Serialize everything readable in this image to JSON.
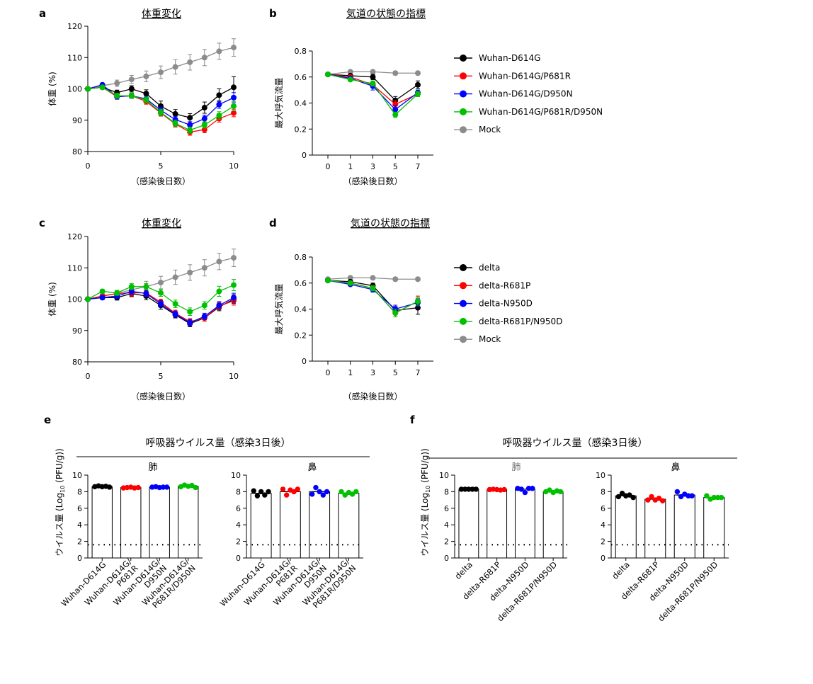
{
  "colors": {
    "black": "#000000",
    "red": "#ff0000",
    "blue": "#0000ff",
    "green": "#00c000",
    "gray": "#8c8c8c"
  },
  "chart_data": [
    {
      "panel": "a",
      "type": "line",
      "title": "体重変化",
      "xlabel": "（感染後日数）",
      "ylabel": "体重 (%)",
      "xlim": [
        0,
        10
      ],
      "ylim": [
        80,
        120
      ],
      "xticks": [
        0,
        5,
        10
      ],
      "yticks": [
        80,
        90,
        100,
        110,
        120
      ],
      "x": [
        0,
        1,
        2,
        3,
        4,
        5,
        6,
        7,
        8,
        9,
        10
      ],
      "series": [
        {
          "color": "black",
          "values": [
            100,
            100.5,
            98.8,
            100,
            98.5,
            94.5,
            92,
            90.8,
            94,
            98,
            100.5
          ],
          "err": [
            0,
            0.6,
            0.8,
            1,
            1.2,
            1.6,
            1.4,
            1.3,
            1.8,
            2,
            3.4
          ]
        },
        {
          "color": "red",
          "values": [
            100,
            100.5,
            97.5,
            97.8,
            96,
            92.3,
            88.8,
            86.2,
            87,
            90.5,
            92.3
          ],
          "err": [
            0,
            0.5,
            0.8,
            0.8,
            0.9,
            1,
            1,
            1,
            1,
            1.1,
            1.2
          ]
        },
        {
          "color": "blue",
          "values": [
            100,
            101.3,
            97.5,
            97.8,
            96.8,
            93.2,
            90.2,
            88.5,
            90.5,
            95,
            97.2
          ],
          "err": [
            0,
            0.5,
            0.8,
            0.8,
            0.9,
            1,
            1,
            1,
            1.1,
            1.2,
            1.6
          ]
        },
        {
          "color": "green",
          "values": [
            100,
            100.5,
            97.8,
            97.8,
            96.5,
            92.5,
            89,
            86.8,
            88.5,
            91.5,
            94.5
          ],
          "err": [
            0,
            0.5,
            0.8,
            0.8,
            0.9,
            1,
            1,
            1,
            1,
            1.2,
            1.5
          ]
        },
        {
          "color": "gray",
          "values": [
            100,
            101,
            101.8,
            103,
            104,
            105.3,
            107,
            108.5,
            110,
            112,
            113.2
          ],
          "err": [
            0,
            0.7,
            1,
            1.3,
            1.7,
            2,
            2.3,
            2.5,
            2.6,
            2.6,
            2.8
          ]
        }
      ]
    },
    {
      "panel": "b",
      "type": "line",
      "title": "気道の状態の指標",
      "xlabel": "（感染後日数）",
      "ylabel": "最大呼気流量",
      "categories": [
        "0",
        "1",
        "3",
        "5",
        "7"
      ],
      "ylim": [
        0,
        0.8
      ],
      "yticks": [
        "0",
        "0.2",
        "0.4",
        "0.6",
        "0.8"
      ],
      "series": [
        {
          "name": "Wuhan-D614G",
          "color": "black",
          "values": [
            0.62,
            0.61,
            0.6,
            0.42,
            0.54
          ],
          "err": [
            0.01,
            0.01,
            0.02,
            0.03,
            0.03
          ]
        },
        {
          "name": "Wuhan-D614G/P681R",
          "color": "red",
          "values": [
            0.62,
            0.6,
            0.54,
            0.39,
            0.47
          ],
          "err": [
            0.01,
            0.01,
            0.02,
            0.03,
            0.02
          ]
        },
        {
          "name": "Wuhan-D614G/D950N",
          "color": "blue",
          "values": [
            0.62,
            0.59,
            0.53,
            0.35,
            0.48
          ],
          "err": [
            0.01,
            0.01,
            0.03,
            0.03,
            0.02
          ]
        },
        {
          "name": "Wuhan-D614G/P681R/D950N",
          "color": "green",
          "values": [
            0.62,
            0.58,
            0.55,
            0.31,
            0.47
          ],
          "err": [
            0.01,
            0.01,
            0.02,
            0.02,
            0.02
          ]
        },
        {
          "name": "Mock",
          "color": "gray",
          "values": [
            0.62,
            0.64,
            0.64,
            0.63,
            0.63
          ],
          "err": [
            0.01,
            0.01,
            0.01,
            0.015,
            0.01
          ]
        }
      ]
    },
    {
      "panel": "c",
      "type": "line",
      "title": "体重変化",
      "xlabel": "（感染後日数）",
      "ylabel": "体重 (%)",
      "xlim": [
        0,
        10
      ],
      "ylim": [
        80,
        120
      ],
      "xticks": [
        0,
        5,
        10
      ],
      "yticks": [
        80,
        90,
        100,
        110,
        120
      ],
      "x": [
        0,
        1,
        2,
        3,
        4,
        5,
        6,
        7,
        8,
        9,
        10
      ],
      "series": [
        {
          "color": "black",
          "values": [
            100,
            100.5,
            100.5,
            101.8,
            101,
            98,
            95,
            92.2,
            94,
            97.5,
            100
          ],
          "err": [
            0,
            0.6,
            0.8,
            1,
            1.2,
            1.2,
            1,
            1,
            1,
            1.2,
            1.4
          ]
        },
        {
          "color": "red",
          "values": [
            100,
            101,
            101.8,
            102,
            102,
            99,
            95.5,
            92.8,
            94,
            97.8,
            99.5
          ],
          "err": [
            0,
            0.6,
            0.8,
            1,
            1,
            1,
            1,
            1,
            1,
            1.2,
            1.4
          ]
        },
        {
          "color": "blue",
          "values": [
            100,
            100.5,
            101,
            102.5,
            101.8,
            98.5,
            95.2,
            92.5,
            94.5,
            98,
            100.5
          ],
          "err": [
            0,
            0.6,
            0.8,
            1,
            1,
            1,
            1,
            1,
            1,
            1.2,
            1.4
          ]
        },
        {
          "color": "green",
          "values": [
            100,
            102.5,
            102,
            104,
            104,
            102,
            98.5,
            96,
            98,
            102.5,
            104.5
          ],
          "err": [
            0,
            0.6,
            0.8,
            1,
            1,
            1.1,
            1.2,
            1.2,
            1.2,
            1.6,
            1.8
          ]
        },
        {
          "color": "gray",
          "values": [
            100,
            101,
            101.8,
            103,
            104,
            105.3,
            107,
            108.5,
            110,
            112,
            113.2
          ],
          "err": [
            0,
            0.7,
            1,
            1.3,
            1.7,
            2,
            2.3,
            2.5,
            2.6,
            2.6,
            2.8
          ]
        }
      ]
    },
    {
      "panel": "d",
      "type": "line",
      "title": "気道の状態の指標",
      "xlabel": "（感染後日数）",
      "ylabel": "最大呼気流量",
      "categories": [
        "0",
        "1",
        "3",
        "5",
        "7"
      ],
      "ylim": [
        0,
        0.8
      ],
      "yticks": [
        "0",
        "0.2",
        "0.4",
        "0.6",
        "0.8"
      ],
      "series": [
        {
          "name": "delta",
          "color": "black",
          "values": [
            0.62,
            0.61,
            0.58,
            0.39,
            0.41
          ],
          "err": [
            0.01,
            0.01,
            0.02,
            0.03,
            0.05
          ]
        },
        {
          "name": "delta-R681P",
          "color": "red",
          "values": [
            0.62,
            0.6,
            0.56,
            0.37,
            0.46
          ],
          "err": [
            0.01,
            0.01,
            0.02,
            0.03,
            0.04
          ]
        },
        {
          "name": "delta-N950D",
          "color": "blue",
          "values": [
            0.62,
            0.59,
            0.55,
            0.4,
            0.45
          ],
          "err": [
            0.01,
            0.01,
            0.02,
            0.03,
            0.03
          ]
        },
        {
          "name": "delta-R681P/N950D",
          "color": "green",
          "values": [
            0.62,
            0.6,
            0.56,
            0.37,
            0.46
          ],
          "err": [
            0.01,
            0.01,
            0.02,
            0.03,
            0.03
          ]
        },
        {
          "name": "Mock",
          "color": "gray",
          "values": [
            0.63,
            0.64,
            0.64,
            0.63,
            0.63
          ],
          "err": [
            0.01,
            0.01,
            0.01,
            0.015,
            0.01
          ]
        }
      ]
    },
    {
      "panel": "e",
      "type": "bar",
      "title": "呼吸器ウイルス量（感染3日後）",
      "ylabel": "ウイルス量 (Log10 (PFU/g))",
      "ylim": [
        0,
        10
      ],
      "yticks": [
        "0",
        "2",
        "4",
        "6",
        "8",
        "10"
      ],
      "detection_limit": 1.6,
      "groups": [
        {
          "subtitle": "肺",
          "categories": [
            "Wuhan-D614G",
            "Wuhan-D614G/\nP681R",
            "Wuhan-D614G/\nD950N",
            "Wuhan-D614G/\nP681R/D950N"
          ],
          "values": [
            8.6,
            8.5,
            8.55,
            8.65
          ],
          "points": [
            [
              8.6,
              8.7,
              8.6,
              8.65,
              8.55
            ],
            [
              8.45,
              8.5,
              8.55,
              8.45,
              8.5
            ],
            [
              8.55,
              8.6,
              8.5,
              8.55,
              8.55
            ],
            [
              8.6,
              8.8,
              8.65,
              8.75,
              8.5
            ]
          ]
        },
        {
          "subtitle": "鼻",
          "categories": [
            "Wuhan-D614G",
            "Wuhan-D614G/\nP681R",
            "Wuhan-D614G/\nD950N",
            "Wuhan-D614G/\nP681R/D950N"
          ],
          "values": [
            7.8,
            8.0,
            8.0,
            7.8
          ],
          "points": [
            [
              8.1,
              7.5,
              8.0,
              7.6,
              8.0
            ],
            [
              8.3,
              7.6,
              8.2,
              8.0,
              8.3
            ],
            [
              7.7,
              8.5,
              8.0,
              7.6,
              8.0
            ],
            [
              8.0,
              7.6,
              7.9,
              7.7,
              8.0
            ]
          ]
        }
      ]
    },
    {
      "panel": "f",
      "type": "bar",
      "title": "呼吸器ウイルス量（感染3日後）",
      "ylabel": "ウイルス量 (Log10 (PFU/g))",
      "ylim": [
        0,
        10
      ],
      "yticks": [
        "0",
        "2",
        "4",
        "6",
        "8",
        "10"
      ],
      "detection_limit": 1.6,
      "groups": [
        {
          "subtitle": "肺",
          "categories": [
            "delta",
            "delta-R681P",
            "delta-N950D",
            "delta-R681P/N950D"
          ],
          "values": [
            8.3,
            8.25,
            8.3,
            8.0
          ],
          "points": [
            [
              8.3,
              8.3,
              8.3,
              8.3,
              8.3
            ],
            [
              8.25,
              8.3,
              8.25,
              8.2,
              8.25
            ],
            [
              8.4,
              8.3,
              7.9,
              8.4,
              8.4
            ],
            [
              8.0,
              8.2,
              7.9,
              8.1,
              8.0
            ]
          ]
        },
        {
          "subtitle": "鼻",
          "categories": [
            "delta",
            "delta-R681P",
            "delta-N950D",
            "delta-R681P/N950D"
          ],
          "values": [
            7.5,
            7.1,
            7.6,
            7.3
          ],
          "points": [
            [
              7.4,
              7.8,
              7.5,
              7.6,
              7.3
            ],
            [
              7.0,
              7.4,
              7.0,
              7.2,
              6.9
            ],
            [
              8.0,
              7.4,
              7.7,
              7.5,
              7.5
            ],
            [
              7.5,
              7.1,
              7.3,
              7.3,
              7.3
            ]
          ]
        }
      ]
    }
  ]
}
